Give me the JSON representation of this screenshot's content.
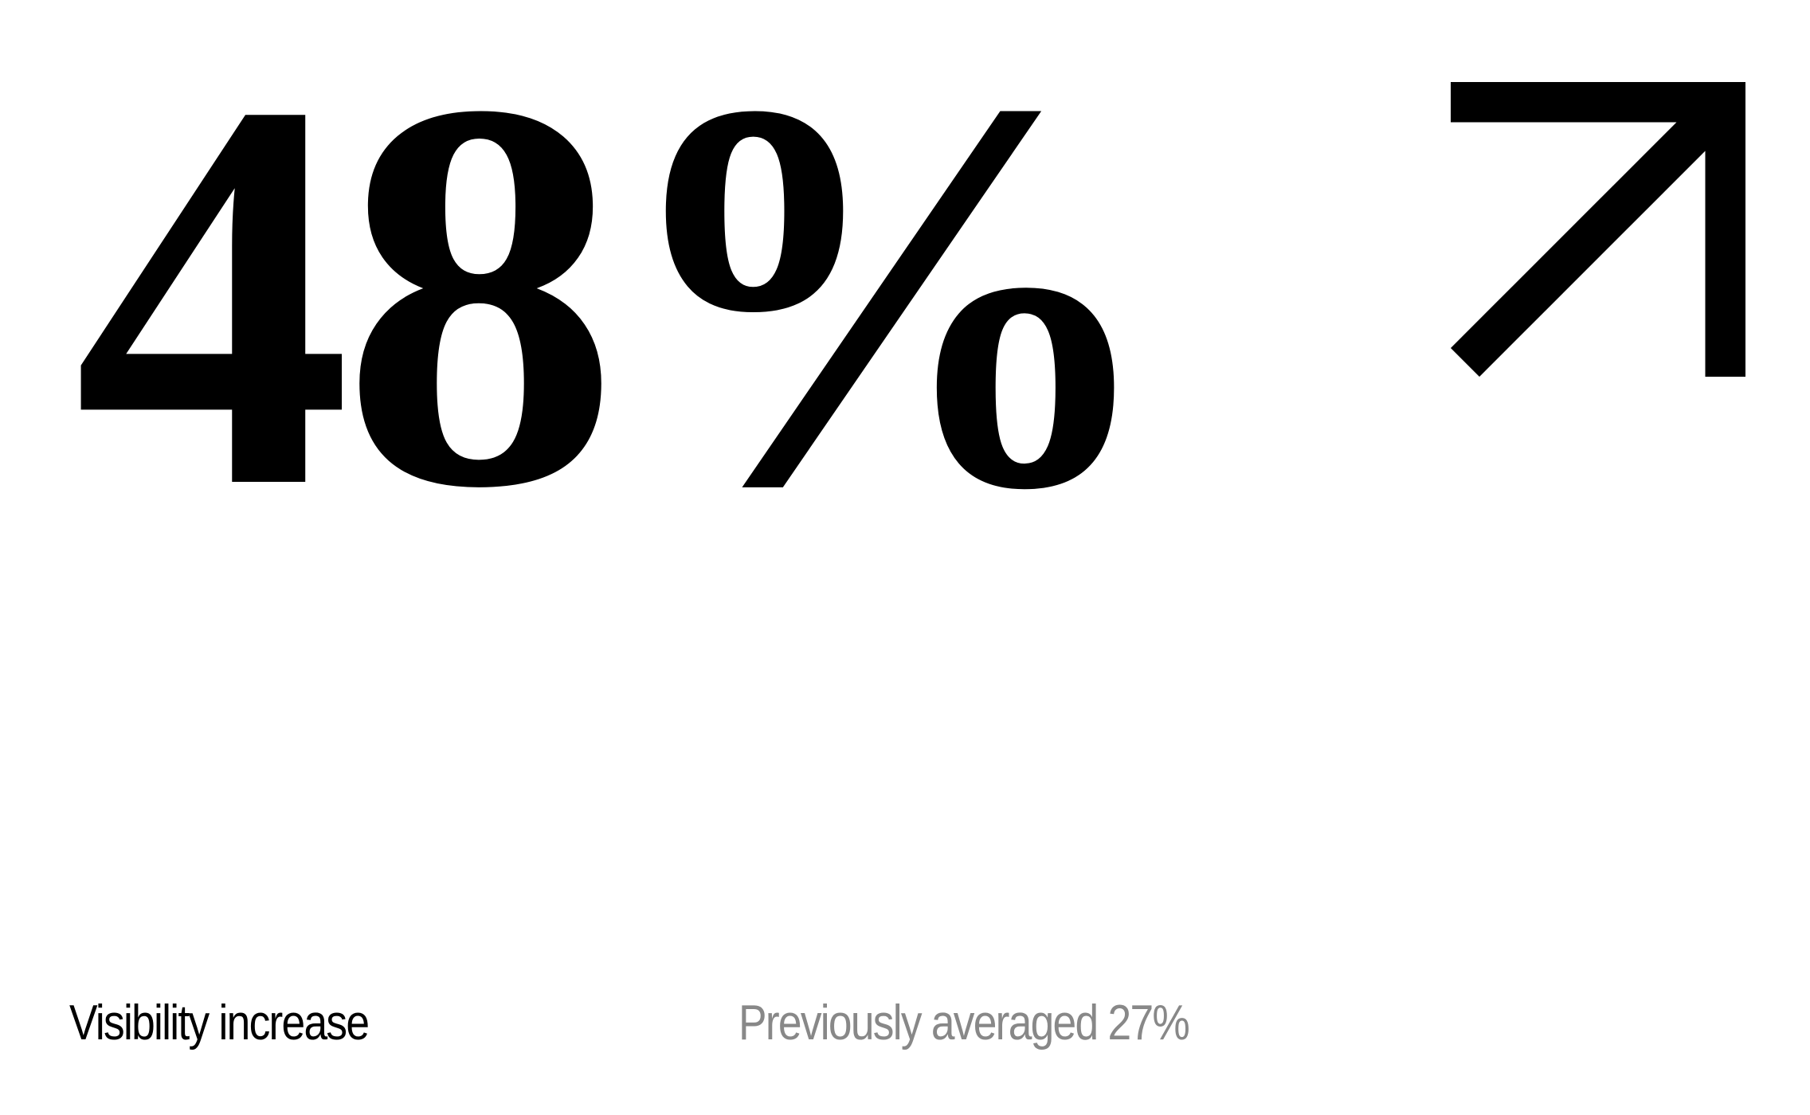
{
  "stat": {
    "value": "48%",
    "trend_icon": "arrow-up-right-icon"
  },
  "caption": "Visibility increase",
  "comparison": "Previously averaged 27%",
  "colors": {
    "primary": "#000000",
    "secondary": "#888888",
    "background": "#ffffff"
  }
}
